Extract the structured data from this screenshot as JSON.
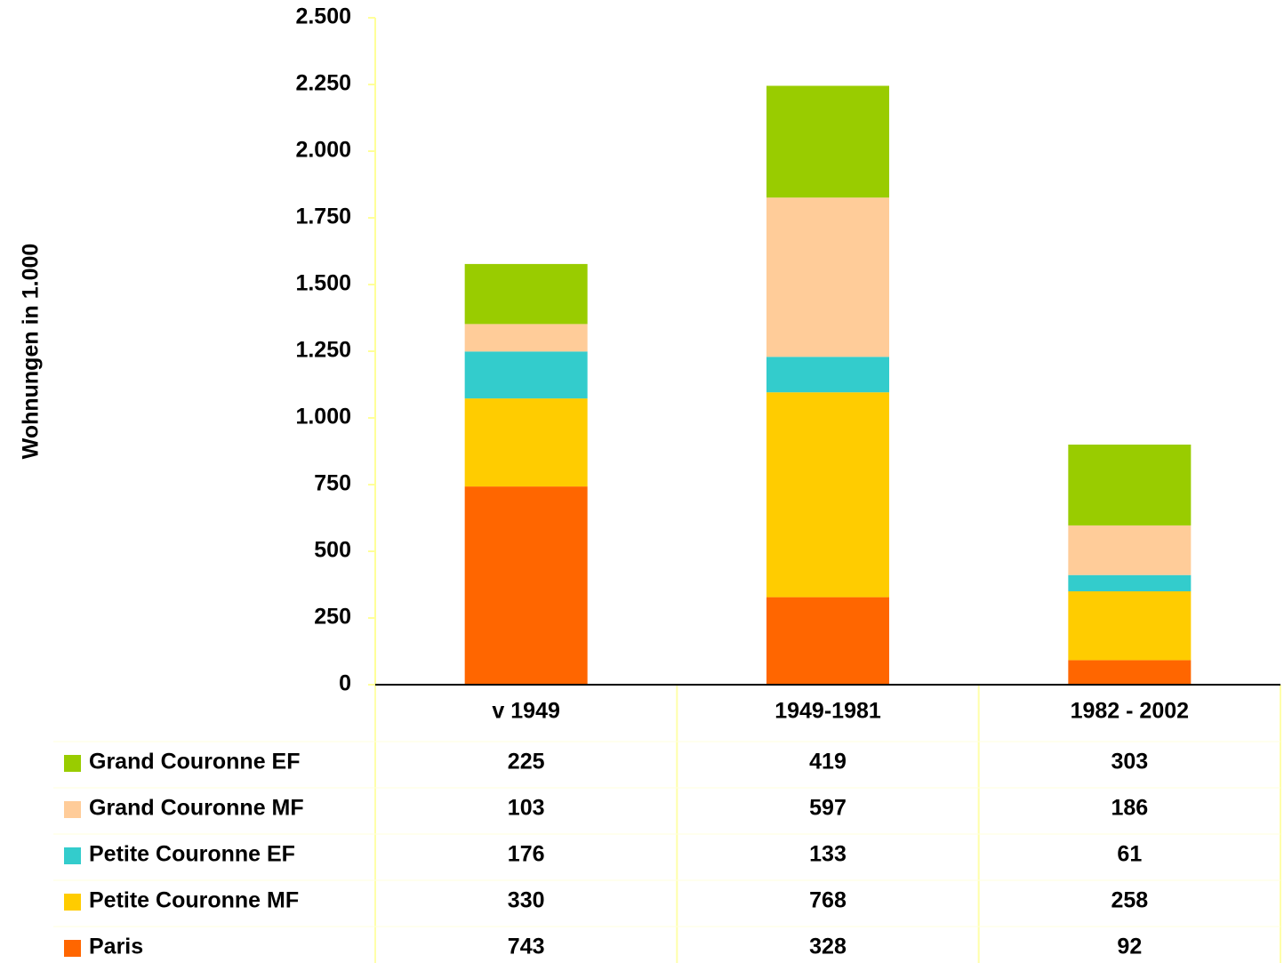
{
  "chart_data": {
    "type": "stacked_bar",
    "y_axis_label": "Wohnungen in 1.000",
    "categories": [
      "v 1949",
      "1949-1981",
      "1982 - 2002"
    ],
    "series": [
      {
        "name": "Paris",
        "color": "#ff6600",
        "values": [
          743,
          328,
          92
        ]
      },
      {
        "name": "Petite Couronne MF",
        "color": "#ffcc00",
        "values": [
          330,
          768,
          258
        ]
      },
      {
        "name": "Petite Couronne EF",
        "color": "#33cccc",
        "values": [
          176,
          133,
          61
        ]
      },
      {
        "name": "Grand Couronne MF",
        "color": "#ffcc99",
        "values": [
          103,
          597,
          186
        ]
      },
      {
        "name": "Grand Couronne EF",
        "color": "#99cc00",
        "values": [
          225,
          419,
          303
        ]
      }
    ],
    "ylim": [
      0,
      2500
    ],
    "yticks": [
      0,
      250,
      500,
      750,
      {
        "value": 1000,
        "label": "1.000"
      },
      {
        "value": 1250,
        "label": "1.250"
      },
      {
        "value": 1500,
        "label": "1.500"
      },
      {
        "value": 1750,
        "label": "1.750"
      },
      {
        "value": 2000,
        "label": "2.000"
      },
      {
        "value": 2250,
        "label": "2.250"
      },
      {
        "value": 2500,
        "label": "2.500"
      }
    ],
    "data_table": true
  }
}
